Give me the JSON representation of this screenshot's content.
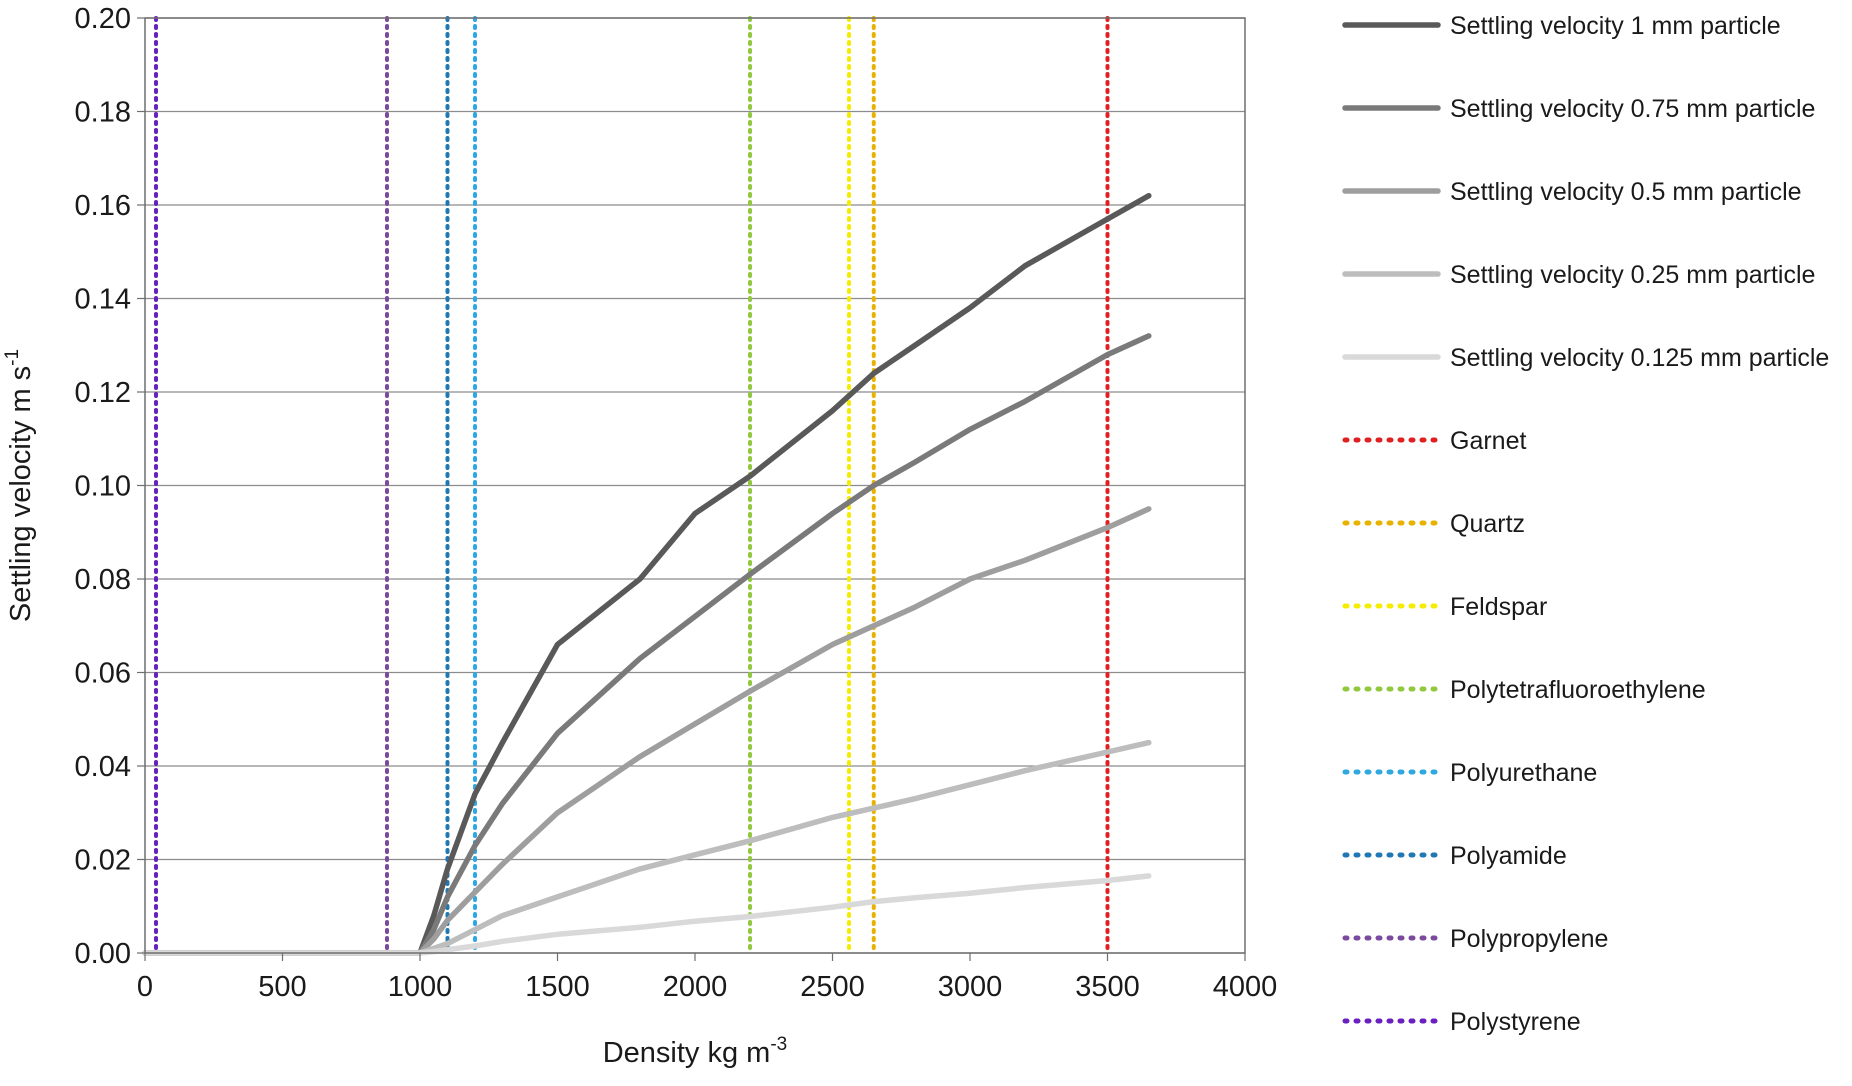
{
  "chart_data": {
    "type": "line",
    "title": "",
    "xlabel": "Density kg m",
    "xlabel_sup": "-3",
    "ylabel": "Settling velocity m s",
    "ylabel_sup": "-1",
    "xlim": [
      0,
      4000
    ],
    "ylim": [
      0,
      0.2
    ],
    "x_ticks": [
      "0",
      "500",
      "1000",
      "1500",
      "2000",
      "2500",
      "3000",
      "3500",
      "4000"
    ],
    "y_ticks": [
      "0.00",
      "0.02",
      "0.04",
      "0.06",
      "0.08",
      "0.10",
      "0.12",
      "0.14",
      "0.16",
      "0.18",
      "0.20"
    ],
    "grid": "horizontal",
    "legend_position": "right",
    "series": [
      {
        "name": "Settling velocity 1 mm particle",
        "color": "#595959",
        "style": "solid",
        "x": [
          0,
          1000,
          1050,
          1100,
          1200,
          1300,
          1500,
          1800,
          2000,
          2200,
          2500,
          2650,
          2800,
          3000,
          3200,
          3500,
          3650
        ],
        "y": [
          0,
          0,
          0.008,
          0.018,
          0.034,
          0.045,
          0.066,
          0.08,
          0.094,
          0.102,
          0.116,
          0.124,
          0.13,
          0.138,
          0.147,
          0.157,
          0.162
        ]
      },
      {
        "name": "Settling velocity 0.75 mm particle",
        "color": "#7a7a7a",
        "style": "solid",
        "x": [
          0,
          1000,
          1050,
          1100,
          1200,
          1300,
          1500,
          1800,
          2000,
          2200,
          2500,
          2650,
          2800,
          3000,
          3200,
          3500,
          3650
        ],
        "y": [
          0,
          0,
          0.005,
          0.012,
          0.023,
          0.032,
          0.047,
          0.063,
          0.072,
          0.081,
          0.094,
          0.1,
          0.105,
          0.112,
          0.118,
          0.128,
          0.132
        ]
      },
      {
        "name": "Settling velocity 0.5 mm particle",
        "color": "#9e9e9e",
        "style": "solid",
        "x": [
          0,
          1000,
          1050,
          1100,
          1200,
          1300,
          1500,
          1800,
          2000,
          2200,
          2500,
          2650,
          2800,
          3000,
          3200,
          3500,
          3650
        ],
        "y": [
          0,
          0,
          0.003,
          0.007,
          0.013,
          0.019,
          0.03,
          0.042,
          0.049,
          0.056,
          0.066,
          0.07,
          0.074,
          0.08,
          0.084,
          0.091,
          0.095
        ]
      },
      {
        "name": "Settling velocity 0.25 mm particle",
        "color": "#bdbdbd",
        "style": "solid",
        "x": [
          0,
          1000,
          1050,
          1100,
          1200,
          1300,
          1500,
          1800,
          2000,
          2200,
          2500,
          2650,
          2800,
          3000,
          3200,
          3500,
          3650
        ],
        "y": [
          0,
          0,
          0.001,
          0.002,
          0.005,
          0.008,
          0.012,
          0.018,
          0.021,
          0.024,
          0.029,
          0.031,
          0.033,
          0.036,
          0.039,
          0.043,
          0.045
        ]
      },
      {
        "name": "Settling velocity 0.125 mm particle",
        "color": "#d9d9d9",
        "style": "solid",
        "x": [
          0,
          1000,
          1050,
          1100,
          1200,
          1300,
          1500,
          1800,
          2000,
          2200,
          2500,
          2650,
          2800,
          3000,
          3200,
          3500,
          3650
        ],
        "y": [
          0,
          0,
          0.0003,
          0.0007,
          0.0015,
          0.0025,
          0.004,
          0.0055,
          0.0068,
          0.0078,
          0.0098,
          0.011,
          0.0118,
          0.0128,
          0.014,
          0.0155,
          0.0165
        ]
      }
    ],
    "markers": [
      {
        "name": "Garnet",
        "x": 3500,
        "color": "#e02020"
      },
      {
        "name": "Quartz",
        "x": 2650,
        "color": "#e8b200"
      },
      {
        "name": "Feldspar",
        "x": 2560,
        "color": "#f5ec00"
      },
      {
        "name": "Polytetrafluoroethylene",
        "x": 2200,
        "color": "#92c83e"
      },
      {
        "name": "Polyurethane",
        "x": 1200,
        "color": "#2fa8e0"
      },
      {
        "name": "Polyamide",
        "x": 1100,
        "color": "#1f78b4"
      },
      {
        "name": "Polypropylene",
        "x": 880,
        "color": "#7a4a9e"
      },
      {
        "name": "Polystyrene",
        "x": 40,
        "color": "#6a1fc0"
      }
    ]
  }
}
